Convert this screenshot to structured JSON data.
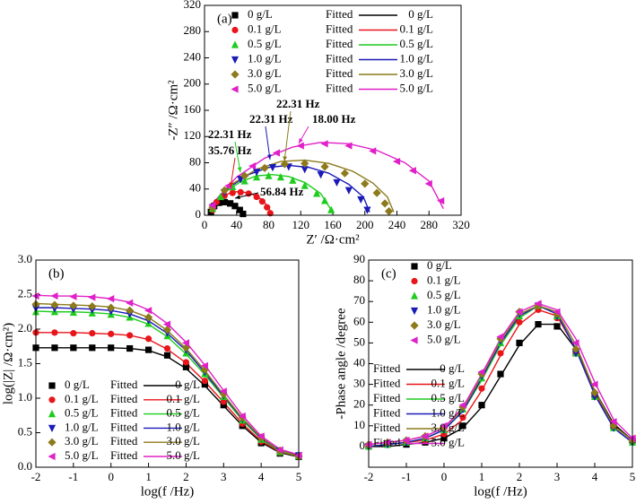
{
  "chart_data": [
    {
      "type": "scatter",
      "panel_label": "(a)",
      "x_label": "Z′ /Ω·cm²",
      "y_label": "-Z″ /Ω·cm²",
      "xlim": [
        0,
        320
      ],
      "ylim": [
        0,
        320
      ],
      "xticks": [
        0,
        40,
        80,
        120,
        160,
        200,
        240,
        280,
        320
      ],
      "yticks": [
        0,
        40,
        80,
        120,
        160,
        200,
        240,
        280,
        320
      ],
      "fit_label": "Fitted",
      "series": [
        {
          "name": "0 g/L",
          "color": "#000000",
          "marker": "square",
          "x": [
            8,
            12,
            18,
            25,
            32,
            38,
            44,
            48
          ],
          "values": [
            5,
            14,
            19,
            20,
            18,
            14,
            8,
            2
          ]
        },
        {
          "name": "0.1 g/L",
          "color": "#e8151b",
          "marker": "circle",
          "x": [
            10,
            15,
            25,
            35,
            45,
            55,
            65,
            72,
            78,
            82
          ],
          "values": [
            8,
            20,
            30,
            34,
            35,
            33,
            28,
            21,
            12,
            3
          ]
        },
        {
          "name": "0.5 g/L",
          "color": "#1ecc1e",
          "marker": "triangle-up",
          "x": [
            10,
            20,
            35,
            50,
            65,
            80,
            95,
            110,
            125,
            140,
            150,
            158
          ],
          "values": [
            10,
            28,
            43,
            52,
            58,
            60,
            58,
            53,
            45,
            33,
            22,
            8
          ]
        },
        {
          "name": "1.0 g/L",
          "color": "#1a1ab8",
          "marker": "triangle-down",
          "x": [
            10,
            25,
            45,
            65,
            85,
            105,
            125,
            145,
            165,
            180,
            195,
            203
          ],
          "values": [
            12,
            35,
            55,
            66,
            73,
            74,
            70,
            62,
            50,
            38,
            24,
            8
          ]
        },
        {
          "name": "3.0 g/L",
          "color": "#8c7a1c",
          "marker": "diamond",
          "x": [
            10,
            25,
            50,
            75,
            100,
            125,
            150,
            175,
            200,
            215,
            225,
            230
          ],
          "values": [
            12,
            38,
            60,
            72,
            78,
            79,
            74,
            64,
            48,
            34,
            18,
            6
          ]
        },
        {
          "name": "5.0 g/L",
          "color": "#e020c8",
          "marker": "triangle-left",
          "x": [
            10,
            30,
            60,
            90,
            120,
            150,
            180,
            210,
            240,
            260,
            280,
            295
          ],
          "values": [
            15,
            45,
            75,
            95,
            106,
            109,
            106,
            98,
            82,
            68,
            48,
            22
          ]
        }
      ],
      "fits": [
        {
          "x": [
            8,
            12,
            18,
            25,
            32,
            38,
            44,
            49
          ],
          "values": [
            4,
            13,
            19,
            21,
            19,
            15,
            9,
            1
          ]
        },
        {
          "x": [
            10,
            20,
            30,
            40,
            50,
            60,
            70,
            78,
            84
          ],
          "values": [
            10,
            26,
            33,
            36,
            35,
            32,
            25,
            15,
            2
          ]
        },
        {
          "x": [
            10,
            25,
            45,
            65,
            85,
            105,
            125,
            145,
            158
          ],
          "values": [
            12,
            35,
            51,
            60,
            62,
            59,
            50,
            33,
            8
          ]
        },
        {
          "x": [
            10,
            30,
            55,
            80,
            105,
            130,
            155,
            180,
            198,
            206
          ],
          "values": [
            14,
            42,
            62,
            73,
            76,
            73,
            64,
            47,
            28,
            5
          ]
        },
        {
          "x": [
            10,
            35,
            65,
            95,
            125,
            155,
            185,
            210,
            228,
            236
          ],
          "values": [
            15,
            48,
            70,
            82,
            84,
            79,
            67,
            49,
            28,
            5
          ]
        },
        {
          "x": [
            10,
            40,
            75,
            110,
            145,
            180,
            215,
            250,
            280,
            298
          ],
          "values": [
            18,
            58,
            87,
            104,
            111,
            109,
            99,
            80,
            52,
            10
          ]
        }
      ],
      "annotations": [
        {
          "text": "56.84 Hz",
          "color": "#000000"
        },
        {
          "text": "35.76 Hz",
          "color": "#e8151b"
        },
        {
          "text": "22.31 Hz",
          "color": "#1ecc1e"
        },
        {
          "text": "22.31 Hz",
          "color": "#1a1ab8"
        },
        {
          "text": "22.31 Hz",
          "color": "#8c7a1c"
        },
        {
          "text": "18.00 Hz",
          "color": "#e020c8"
        }
      ]
    },
    {
      "type": "scatter",
      "panel_label": "(b)",
      "x_label": "log(f /Hz)",
      "y_label": "log(|Z| /Ω·cm²)",
      "xlim": [
        -2,
        5
      ],
      "ylim": [
        0,
        3
      ],
      "xticks": [
        -2,
        -1,
        0,
        1,
        2,
        3,
        4,
        5
      ],
      "yticks": [
        {
          "value": 0,
          "label": "0.0"
        },
        0.5,
        {
          "value": 1,
          "label": "1.0"
        },
        1.5,
        {
          "value": 2,
          "label": "2.0"
        },
        2.5,
        {
          "value": 3,
          "label": "3.0"
        }
      ],
      "fit_label": "Fitted",
      "x": [
        -2,
        -1.5,
        -1,
        -0.5,
        0,
        0.5,
        1,
        1.5,
        2,
        2.5,
        3,
        3.5,
        4,
        4.5,
        5
      ],
      "series": [
        {
          "name": "0 g/L",
          "color": "#000000",
          "marker": "square",
          "values": [
            1.73,
            1.73,
            1.73,
            1.73,
            1.73,
            1.72,
            1.7,
            1.62,
            1.45,
            1.2,
            0.9,
            0.6,
            0.35,
            0.2,
            0.15
          ]
        },
        {
          "name": "0.1 g/L",
          "color": "#e8151b",
          "marker": "circle",
          "values": [
            1.95,
            1.95,
            1.94,
            1.94,
            1.93,
            1.91,
            1.86,
            1.72,
            1.52,
            1.25,
            0.95,
            0.63,
            0.37,
            0.21,
            0.15
          ]
        },
        {
          "name": "0.5 g/L",
          "color": "#1ecc1e",
          "marker": "triangle-up",
          "values": [
            2.25,
            2.25,
            2.24,
            2.23,
            2.21,
            2.17,
            2.08,
            1.9,
            1.65,
            1.35,
            1.02,
            0.68,
            0.4,
            0.22,
            0.16
          ]
        },
        {
          "name": "1.0 g/L",
          "color": "#1a1ab8",
          "marker": "triangle-down",
          "values": [
            2.3,
            2.3,
            2.29,
            2.28,
            2.26,
            2.22,
            2.13,
            1.95,
            1.7,
            1.38,
            1.04,
            0.7,
            0.42,
            0.24,
            0.17
          ]
        },
        {
          "name": "3.0 g/L",
          "color": "#8c7a1c",
          "marker": "diamond",
          "values": [
            2.36,
            2.35,
            2.34,
            2.33,
            2.31,
            2.27,
            2.17,
            1.99,
            1.73,
            1.41,
            1.06,
            0.72,
            0.43,
            0.24,
            0.16
          ]
        },
        {
          "name": "5.0 g/L",
          "color": "#e020c8",
          "marker": "triangle-left",
          "values": [
            2.48,
            2.48,
            2.47,
            2.46,
            2.44,
            2.38,
            2.27,
            2.07,
            1.8,
            1.47,
            1.1,
            0.74,
            0.45,
            0.25,
            0.17
          ]
        }
      ],
      "fits": [
        {
          "values": [
            1.73,
            1.73,
            1.73,
            1.73,
            1.73,
            1.72,
            1.69,
            1.6,
            1.43,
            1.18,
            0.89,
            0.6,
            0.36,
            0.21,
            0.15
          ]
        },
        {
          "values": [
            1.95,
            1.95,
            1.95,
            1.94,
            1.93,
            1.91,
            1.85,
            1.71,
            1.51,
            1.24,
            0.94,
            0.63,
            0.38,
            0.22,
            0.16
          ]
        },
        {
          "values": [
            2.26,
            2.25,
            2.25,
            2.24,
            2.22,
            2.17,
            2.07,
            1.89,
            1.64,
            1.34,
            1.01,
            0.68,
            0.41,
            0.23,
            0.16
          ]
        },
        {
          "values": [
            2.31,
            2.31,
            2.3,
            2.29,
            2.27,
            2.22,
            2.12,
            1.94,
            1.69,
            1.37,
            1.03,
            0.7,
            0.42,
            0.24,
            0.17
          ]
        },
        {
          "values": [
            2.37,
            2.36,
            2.35,
            2.34,
            2.32,
            2.27,
            2.17,
            1.98,
            1.72,
            1.4,
            1.05,
            0.71,
            0.43,
            0.24,
            0.16
          ]
        },
        {
          "values": [
            2.49,
            2.48,
            2.48,
            2.47,
            2.44,
            2.39,
            2.28,
            2.08,
            1.81,
            1.48,
            1.11,
            0.75,
            0.45,
            0.26,
            0.18
          ]
        }
      ]
    },
    {
      "type": "scatter",
      "panel_label": "(c)",
      "x_label": "log(f /Hz)",
      "y_label": "-Phase angle /degree",
      "xlim": [
        -2,
        5
      ],
      "ylim": [
        -10,
        90
      ],
      "xticks": [
        -2,
        -1,
        0,
        1,
        2,
        3,
        4,
        5
      ],
      "yticks": [
        0,
        10,
        20,
        30,
        40,
        50,
        60,
        70,
        80,
        90
      ],
      "fit_label": "Fitted",
      "x": [
        -2,
        -1.5,
        -1,
        -0.5,
        0,
        0.5,
        1,
        1.5,
        2,
        2.5,
        3,
        3.5,
        4,
        4.5,
        5
      ],
      "series": [
        {
          "name": "0 g/L",
          "color": "#000000",
          "marker": "square",
          "values": [
            0,
            1,
            1,
            2,
            4,
            10,
            20,
            35,
            50,
            59,
            58,
            45,
            25,
            10,
            3
          ]
        },
        {
          "name": "0.1 g/L",
          "color": "#e8151b",
          "marker": "circle",
          "values": [
            0,
            1,
            2,
            3,
            6,
            14,
            28,
            45,
            60,
            66,
            62,
            45,
            25,
            10,
            3
          ]
        },
        {
          "name": "0.5 g/L",
          "color": "#1ecc1e",
          "marker": "triangle-up",
          "values": [
            0,
            1,
            2,
            4,
            8,
            18,
            33,
            50,
            63,
            68,
            63,
            45,
            24,
            9,
            2
          ]
        },
        {
          "name": "1.0 g/L",
          "color": "#1a1ab8",
          "marker": "triangle-down",
          "values": [
            0,
            1,
            2,
            4,
            8,
            18,
            34,
            51,
            64,
            68,
            63,
            45,
            24,
            9,
            2
          ]
        },
        {
          "name": "3.0 g/L",
          "color": "#8c7a1c",
          "marker": "diamond",
          "values": [
            1,
            2,
            3,
            5,
            9,
            19,
            35,
            52,
            65,
            68,
            64,
            47,
            26,
            10,
            3
          ]
        },
        {
          "name": "5.0 g/L",
          "color": "#e020c8",
          "marker": "triangle-left",
          "values": [
            1,
            2,
            3,
            5,
            10,
            20,
            36,
            53,
            65,
            69,
            65,
            50,
            30,
            12,
            4
          ]
        }
      ],
      "fits": [
        {
          "values": [
            0,
            0,
            1,
            2,
            4,
            9,
            19,
            34,
            49,
            59,
            59,
            47,
            27,
            11,
            3
          ]
        },
        {
          "values": [
            0,
            1,
            2,
            3,
            6,
            13,
            27,
            44,
            59,
            66,
            63,
            47,
            26,
            10,
            3
          ]
        },
        {
          "values": [
            0,
            1,
            2,
            4,
            8,
            17,
            32,
            49,
            62,
            68,
            64,
            47,
            25,
            9,
            2
          ]
        },
        {
          "values": [
            0,
            1,
            2,
            4,
            8,
            17,
            33,
            50,
            63,
            68,
            64,
            47,
            25,
            9,
            2
          ]
        },
        {
          "values": [
            1,
            2,
            3,
            5,
            9,
            18,
            34,
            51,
            64,
            68,
            65,
            49,
            27,
            10,
            3
          ]
        },
        {
          "values": [
            1,
            2,
            3,
            5,
            9,
            19,
            35,
            52,
            65,
            69,
            66,
            52,
            31,
            13,
            4
          ]
        }
      ]
    }
  ]
}
